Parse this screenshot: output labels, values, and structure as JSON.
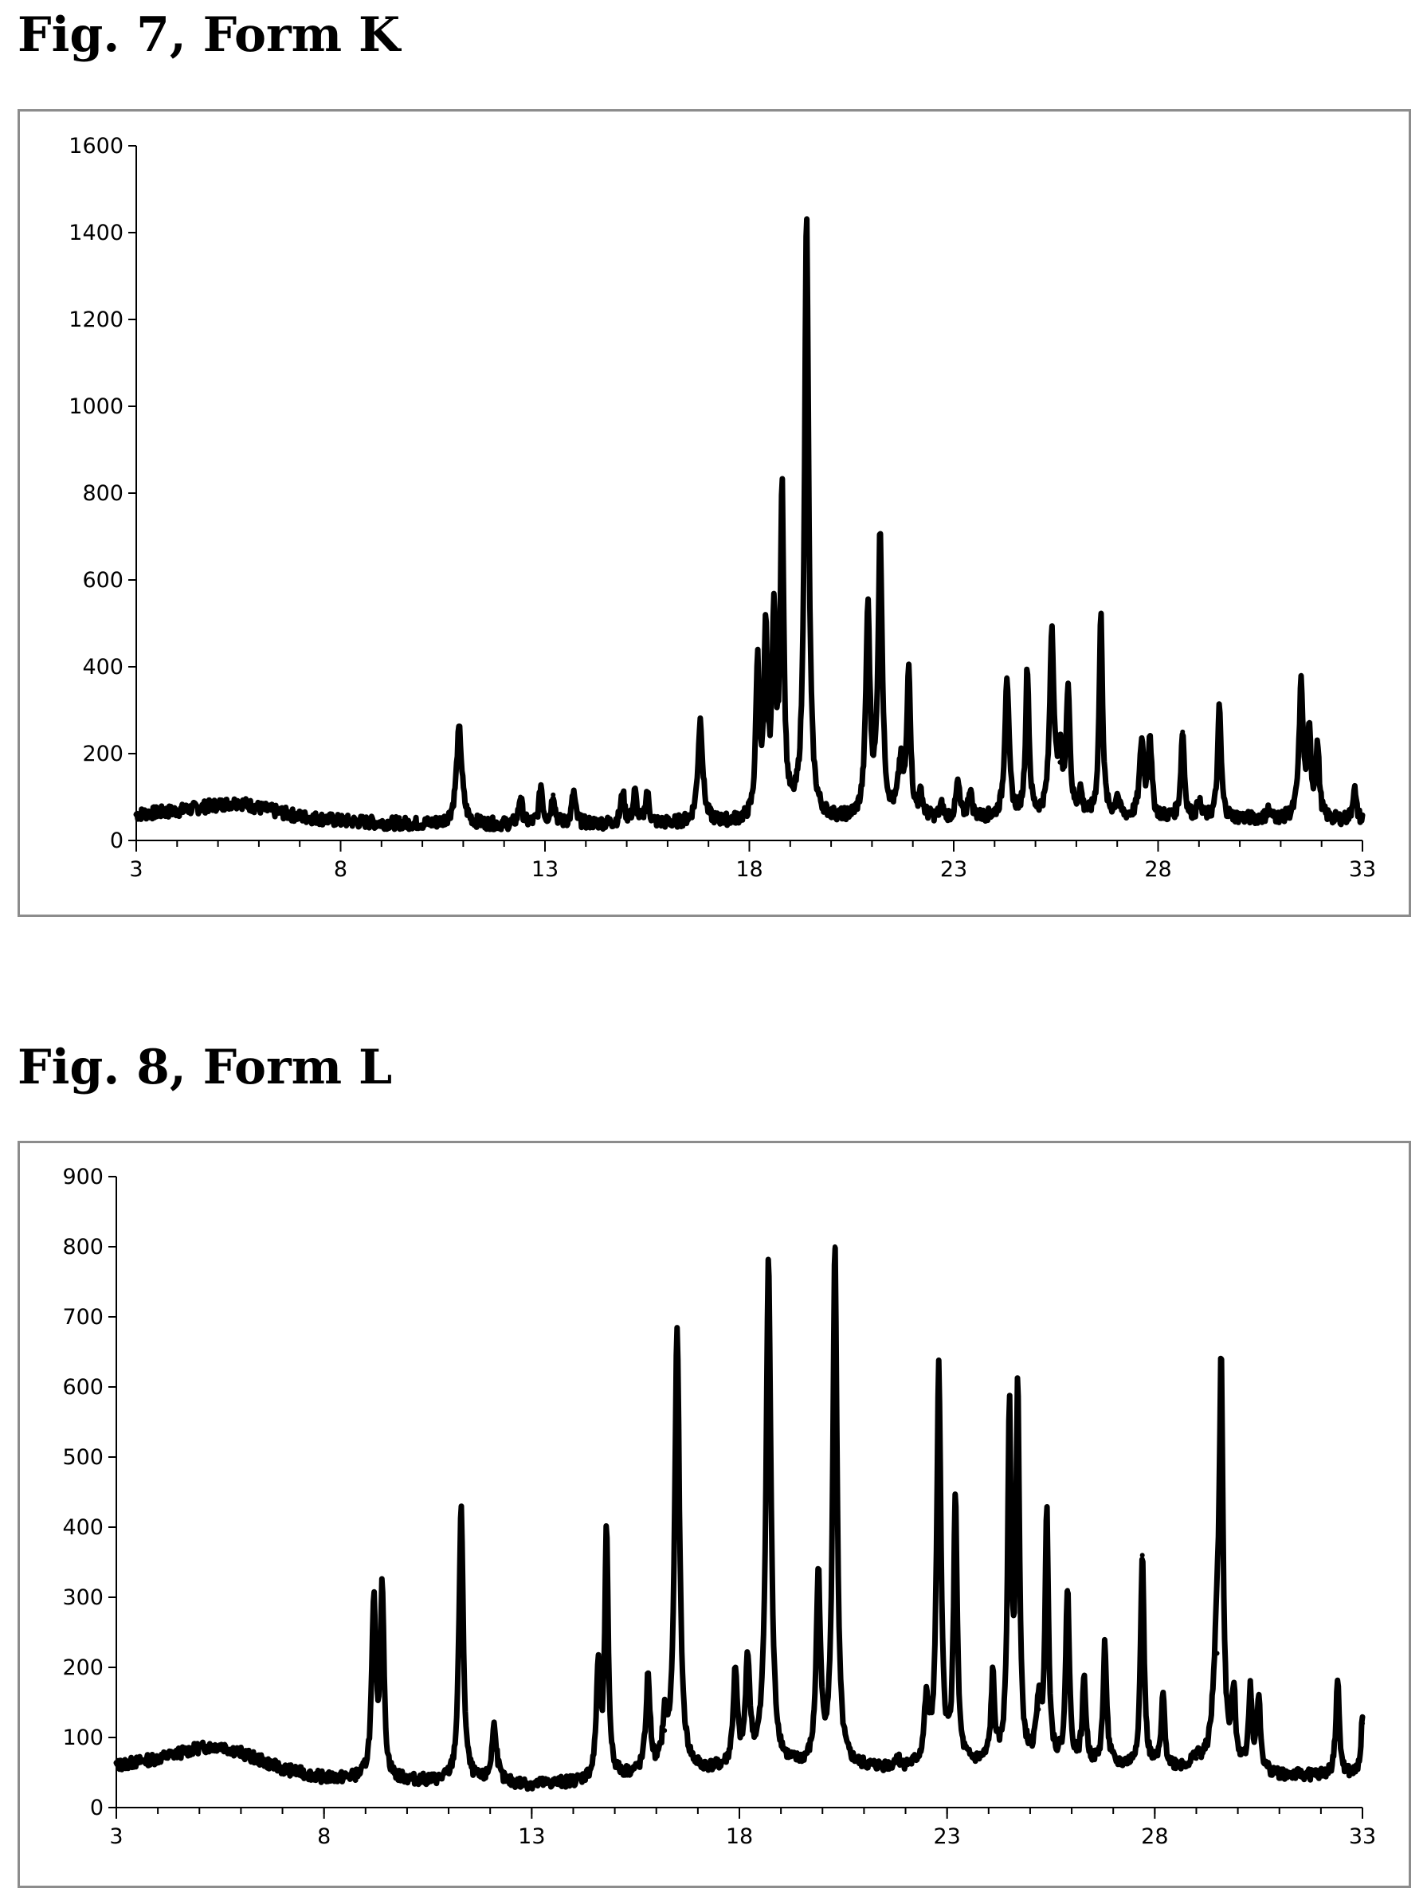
{
  "figures": [
    {
      "title": "Fig. 7, Form K",
      "chart_data": {
        "type": "line",
        "title": "",
        "xlabel": "",
        "ylabel": "",
        "xlim": [
          3,
          33
        ],
        "ylim": [
          0,
          1600
        ],
        "xticks": [
          3,
          8,
          13,
          18,
          23,
          28,
          33
        ],
        "yticks": [
          0,
          200,
          400,
          600,
          800,
          1000,
          1200,
          1400,
          1600
        ],
        "grid": false,
        "legend": "none",
        "baseline": [
          [
            3,
            60
          ],
          [
            4,
            68
          ],
          [
            5,
            82
          ],
          [
            5.5,
            88
          ],
          [
            6,
            75
          ],
          [
            7,
            55
          ],
          [
            8,
            45
          ],
          [
            9,
            40
          ],
          [
            10,
            38
          ],
          [
            12,
            36
          ],
          [
            14,
            38
          ],
          [
            16,
            38
          ],
          [
            17.5,
            40
          ],
          [
            19,
            44
          ],
          [
            20.5,
            45
          ],
          [
            22,
            48
          ],
          [
            24,
            50
          ],
          [
            26,
            50
          ],
          [
            28,
            50
          ],
          [
            30,
            50
          ],
          [
            33,
            45
          ]
        ],
        "peaks": [
          {
            "x": 10.9,
            "y": 255,
            "w": 0.08
          },
          {
            "x": 12.4,
            "y": 100,
            "w": 0.05
          },
          {
            "x": 12.9,
            "y": 125,
            "w": 0.05
          },
          {
            "x": 13.2,
            "y": 105,
            "w": 0.05
          },
          {
            "x": 13.7,
            "y": 110,
            "w": 0.05
          },
          {
            "x": 14.9,
            "y": 110,
            "w": 0.05
          },
          {
            "x": 15.2,
            "y": 108,
            "w": 0.05
          },
          {
            "x": 15.5,
            "y": 110,
            "w": 0.05
          },
          {
            "x": 16.8,
            "y": 275,
            "w": 0.07
          },
          {
            "x": 18.2,
            "y": 395,
            "w": 0.05
          },
          {
            "x": 18.4,
            "y": 450,
            "w": 0.05
          },
          {
            "x": 18.6,
            "y": 500,
            "w": 0.05
          },
          {
            "x": 18.8,
            "y": 795,
            "w": 0.05
          },
          {
            "x": 19.4,
            "y": 1430,
            "w": 0.06
          },
          {
            "x": 20.9,
            "y": 520,
            "w": 0.06
          },
          {
            "x": 21.2,
            "y": 695,
            "w": 0.06
          },
          {
            "x": 21.7,
            "y": 165,
            "w": 0.07
          },
          {
            "x": 21.9,
            "y": 395,
            "w": 0.05
          },
          {
            "x": 22.2,
            "y": 100,
            "w": 0.05
          },
          {
            "x": 22.7,
            "y": 75,
            "w": 0.05
          },
          {
            "x": 23.1,
            "y": 130,
            "w": 0.05
          },
          {
            "x": 23.4,
            "y": 115,
            "w": 0.05
          },
          {
            "x": 24.3,
            "y": 375,
            "w": 0.06
          },
          {
            "x": 24.8,
            "y": 390,
            "w": 0.05
          },
          {
            "x": 25.4,
            "y": 475,
            "w": 0.06
          },
          {
            "x": 25.6,
            "y": 180,
            "w": 0.07
          },
          {
            "x": 25.8,
            "y": 345,
            "w": 0.05
          },
          {
            "x": 26.1,
            "y": 105,
            "w": 0.05
          },
          {
            "x": 26.6,
            "y": 515,
            "w": 0.05
          },
          {
            "x": 27.0,
            "y": 100,
            "w": 0.05
          },
          {
            "x": 27.6,
            "y": 225,
            "w": 0.06
          },
          {
            "x": 27.8,
            "y": 235,
            "w": 0.05
          },
          {
            "x": 28.6,
            "y": 250,
            "w": 0.05
          },
          {
            "x": 29.0,
            "y": 85,
            "w": 0.05
          },
          {
            "x": 29.5,
            "y": 305,
            "w": 0.05
          },
          {
            "x": 30.7,
            "y": 70,
            "w": 0.05
          },
          {
            "x": 31.5,
            "y": 355,
            "w": 0.06
          },
          {
            "x": 31.7,
            "y": 230,
            "w": 0.05
          },
          {
            "x": 31.9,
            "y": 210,
            "w": 0.05
          },
          {
            "x": 32.8,
            "y": 120,
            "w": 0.05
          }
        ]
      }
    },
    {
      "title": "Fig. 8, Form L",
      "chart_data": {
        "type": "line",
        "title": "",
        "xlabel": "",
        "ylabel": "",
        "xlim": [
          3,
          33
        ],
        "ylim": [
          0,
          900
        ],
        "xticks": [
          3,
          8,
          13,
          18,
          23,
          28,
          33
        ],
        "yticks": [
          0,
          100,
          200,
          300,
          400,
          500,
          600,
          700,
          800,
          900
        ],
        "grid": false,
        "legend": "none",
        "baseline": [
          [
            3,
            60
          ],
          [
            4,
            70
          ],
          [
            5,
            85
          ],
          [
            5.5,
            88
          ],
          [
            6,
            78
          ],
          [
            7,
            55
          ],
          [
            8,
            42
          ],
          [
            9,
            40
          ],
          [
            10,
            38
          ],
          [
            11,
            36
          ],
          [
            13,
            32
          ],
          [
            14,
            35
          ],
          [
            15.5,
            45
          ],
          [
            17,
            50
          ],
          [
            18.5,
            55
          ],
          [
            20,
            55
          ],
          [
            22,
            55
          ],
          [
            24,
            60
          ],
          [
            26,
            60
          ],
          [
            28,
            55
          ],
          [
            30,
            55
          ],
          [
            31,
            45
          ],
          [
            33,
            45
          ]
        ],
        "peaks": [
          {
            "x": 9.2,
            "y": 285,
            "w": 0.06
          },
          {
            "x": 9.4,
            "y": 310,
            "w": 0.05
          },
          {
            "x": 11.3,
            "y": 430,
            "w": 0.06
          },
          {
            "x": 12.1,
            "y": 115,
            "w": 0.07
          },
          {
            "x": 14.6,
            "y": 195,
            "w": 0.05
          },
          {
            "x": 14.8,
            "y": 390,
            "w": 0.05
          },
          {
            "x": 15.8,
            "y": 180,
            "w": 0.06
          },
          {
            "x": 16.2,
            "y": 110,
            "w": 0.06
          },
          {
            "x": 16.5,
            "y": 675,
            "w": 0.07
          },
          {
            "x": 17.9,
            "y": 185,
            "w": 0.06
          },
          {
            "x": 18.2,
            "y": 205,
            "w": 0.06
          },
          {
            "x": 18.7,
            "y": 775,
            "w": 0.07
          },
          {
            "x": 19.9,
            "y": 325,
            "w": 0.06
          },
          {
            "x": 20.3,
            "y": 800,
            "w": 0.06
          },
          {
            "x": 21.8,
            "y": 70,
            "w": 0.05
          },
          {
            "x": 22.5,
            "y": 140,
            "w": 0.06
          },
          {
            "x": 22.8,
            "y": 620,
            "w": 0.06
          },
          {
            "x": 23.2,
            "y": 440,
            "w": 0.05
          },
          {
            "x": 24.1,
            "y": 180,
            "w": 0.05
          },
          {
            "x": 24.5,
            "y": 555,
            "w": 0.05
          },
          {
            "x": 24.7,
            "y": 585,
            "w": 0.05
          },
          {
            "x": 25.2,
            "y": 140,
            "w": 0.06
          },
          {
            "x": 25.4,
            "y": 415,
            "w": 0.05
          },
          {
            "x": 25.9,
            "y": 310,
            "w": 0.05
          },
          {
            "x": 26.3,
            "y": 180,
            "w": 0.05
          },
          {
            "x": 26.8,
            "y": 230,
            "w": 0.05
          },
          {
            "x": 27.7,
            "y": 360,
            "w": 0.05
          },
          {
            "x": 28.2,
            "y": 155,
            "w": 0.05
          },
          {
            "x": 29.0,
            "y": 70,
            "w": 0.08
          },
          {
            "x": 29.5,
            "y": 220,
            "w": 0.1
          },
          {
            "x": 29.6,
            "y": 570,
            "w": 0.05
          },
          {
            "x": 29.9,
            "y": 155,
            "w": 0.05
          },
          {
            "x": 30.3,
            "y": 165,
            "w": 0.05
          },
          {
            "x": 30.5,
            "y": 150,
            "w": 0.05
          },
          {
            "x": 32.4,
            "y": 180,
            "w": 0.05
          },
          {
            "x": 33.0,
            "y": 120,
            "w": 0.05
          }
        ]
      }
    }
  ]
}
